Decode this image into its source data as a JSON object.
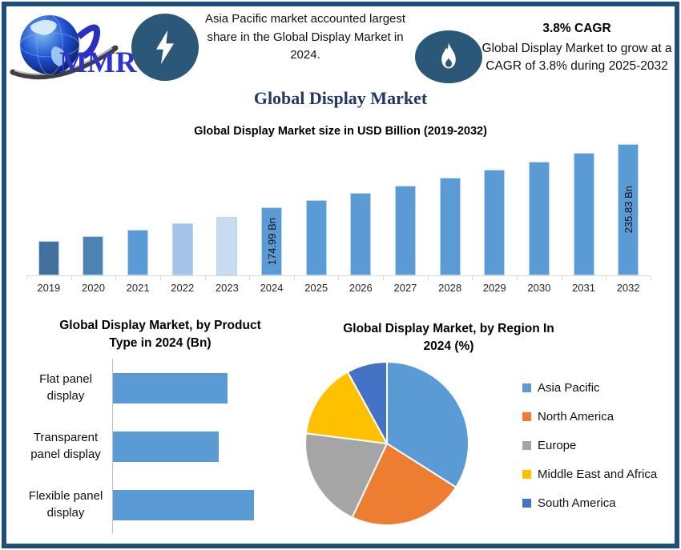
{
  "colors": {
    "frame": "#1f4e79",
    "icon_circle": "#2b5779",
    "page_title": "#1f3864",
    "axis_gray": "#d9d9d9",
    "accent_blue": "#5b9bd5"
  },
  "header": {
    "logo_text": "MMR",
    "bolt_icon": "lightning-bolt",
    "flame_icon": "flame",
    "highlight": "Asia Pacific market accounted largest share in the Global Display Market in 2024.",
    "cagr_title": "3.8% CAGR",
    "cagr_text": "Global Display Market to grow at a CAGR of 3.8% during 2025-2032"
  },
  "title": "Global Display Market",
  "chart_data": [
    {
      "type": "bar",
      "title": "Global Display Market size in USD Billion (2019-2032)",
      "ylim": [
        110,
        240
      ],
      "unit": "USD Billion",
      "bars": [
        {
          "year": "2019",
          "value": 143.0,
          "color": "#41719c",
          "label": ""
        },
        {
          "year": "2020",
          "value": 147.5,
          "color": "#4d83b3",
          "label": ""
        },
        {
          "year": "2021",
          "value": 153.3,
          "color": "#5b9bd5",
          "label": ""
        },
        {
          "year": "2022",
          "value": 159.4,
          "color": "#a3c4e6",
          "label": ""
        },
        {
          "year": "2023",
          "value": 166.1,
          "color": "#c9dbf1",
          "label": ""
        },
        {
          "year": "2024",
          "value": 174.99,
          "color": "#5b9bd5",
          "label": "174.99 Bn"
        },
        {
          "year": "2025",
          "value": 181.64,
          "color": "#5b9bd5",
          "label": ""
        },
        {
          "year": "2026",
          "value": 188.54,
          "color": "#5b9bd5",
          "label": ""
        },
        {
          "year": "2027",
          "value": 195.71,
          "color": "#5b9bd5",
          "label": ""
        },
        {
          "year": "2028",
          "value": 203.14,
          "color": "#5b9bd5",
          "label": ""
        },
        {
          "year": "2029",
          "value": 210.86,
          "color": "#5b9bd5",
          "label": ""
        },
        {
          "year": "2030",
          "value": 218.88,
          "color": "#5b9bd5",
          "label": ""
        },
        {
          "year": "2031",
          "value": 227.19,
          "color": "#5b9bd5",
          "label": ""
        },
        {
          "year": "2032",
          "value": 235.83,
          "color": "#5b9bd5",
          "label": "235.83 Bn"
        }
      ]
    },
    {
      "type": "bar",
      "orientation": "horizontal",
      "title": "Global Display Market, by Product Type in 2024 (Bn)",
      "xlim": [
        0,
        108
      ],
      "bar_color": "#5b9bd5",
      "bars": [
        {
          "label": "Flat panel display",
          "value": 65
        },
        {
          "label": "Transparent panel display",
          "value": 60
        },
        {
          "label": "Flexible panel display",
          "value": 80
        }
      ]
    },
    {
      "type": "pie",
      "title": "Global Display Market, by Region In 2024 (%)",
      "legend_position": "right",
      "slices": [
        {
          "label": "Asia Pacific",
          "value": 34,
          "color": "#5b9bd5"
        },
        {
          "label": "North America",
          "value": 23,
          "color": "#ed7d31"
        },
        {
          "label": "Europe",
          "value": 20,
          "color": "#a5a5a5"
        },
        {
          "label": "Middle East and Africa",
          "value": 15,
          "color": "#ffc000"
        },
        {
          "label": "South America",
          "value": 8,
          "color": "#4472c4"
        }
      ]
    }
  ]
}
